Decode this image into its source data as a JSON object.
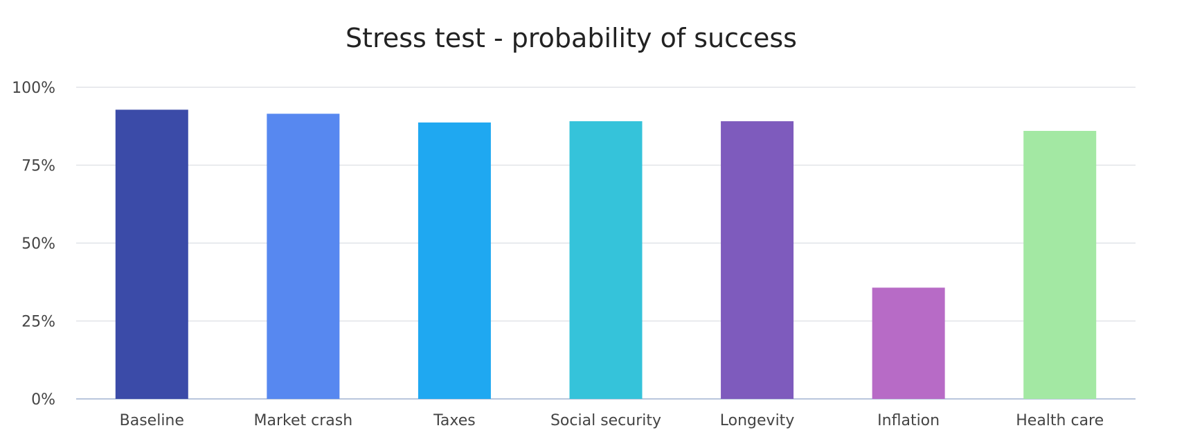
{
  "chart_data": {
    "type": "bar",
    "title": "Stress test - probability of success",
    "xlabel": "",
    "ylabel": "",
    "categories": [
      "Baseline",
      "Market crash",
      "Taxes",
      "Social security",
      "Longevity",
      "Inflation",
      "Health care"
    ],
    "values": [
      92.8,
      91.5,
      88.7,
      89.1,
      89.1,
      35.7,
      86.0
    ],
    "value_unit": "%",
    "ylim": [
      0,
      100
    ],
    "yticks": [
      0,
      25,
      50,
      75,
      100
    ],
    "ytick_labels": [
      "0%",
      "25%",
      "50%",
      "75%",
      "100%"
    ],
    "grid": true,
    "legend": "none",
    "colors": [
      "#3b4ba8",
      "#5788f0",
      "#1fa8f1",
      "#35c3da",
      "#7e5bbd",
      "#b76bc6",
      "#a3e8a3"
    ]
  }
}
